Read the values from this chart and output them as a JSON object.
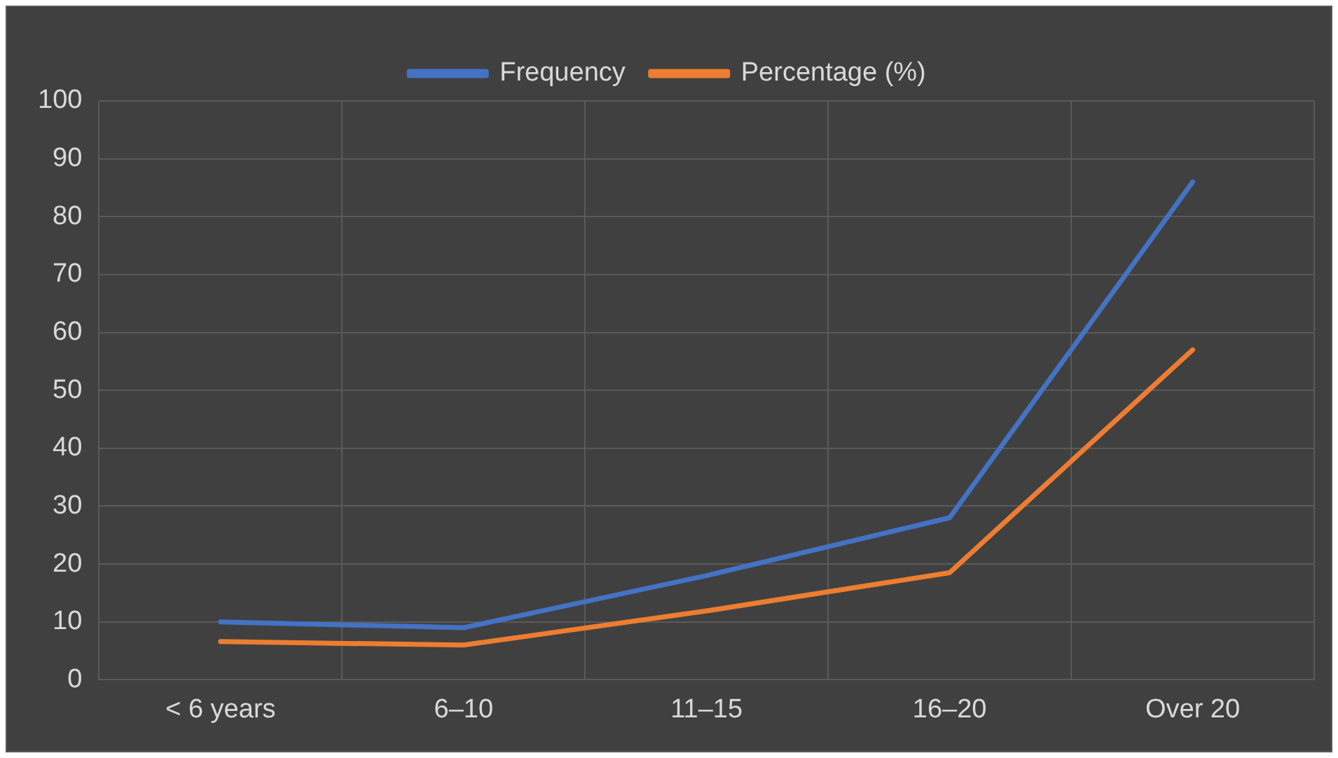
{
  "chart_data": {
    "type": "line",
    "categories": [
      "< 6 years",
      "6–10",
      "11–15",
      "16–20",
      "Over 20"
    ],
    "series": [
      {
        "name": "Frequency",
        "color": "#4472c4",
        "values": [
          10,
          9,
          18,
          28,
          86
        ]
      },
      {
        "name": "Percentage (%)",
        "color": "#ed7d31",
        "values": [
          6.6,
          6.0,
          11.9,
          18.5,
          57.0
        ]
      }
    ],
    "ylim": [
      0,
      100
    ],
    "yticks": [
      0,
      10,
      20,
      30,
      40,
      50,
      60,
      70,
      80,
      90,
      100
    ],
    "grid": true,
    "legend": "top",
    "marker": "none",
    "line_style": "solid"
  }
}
